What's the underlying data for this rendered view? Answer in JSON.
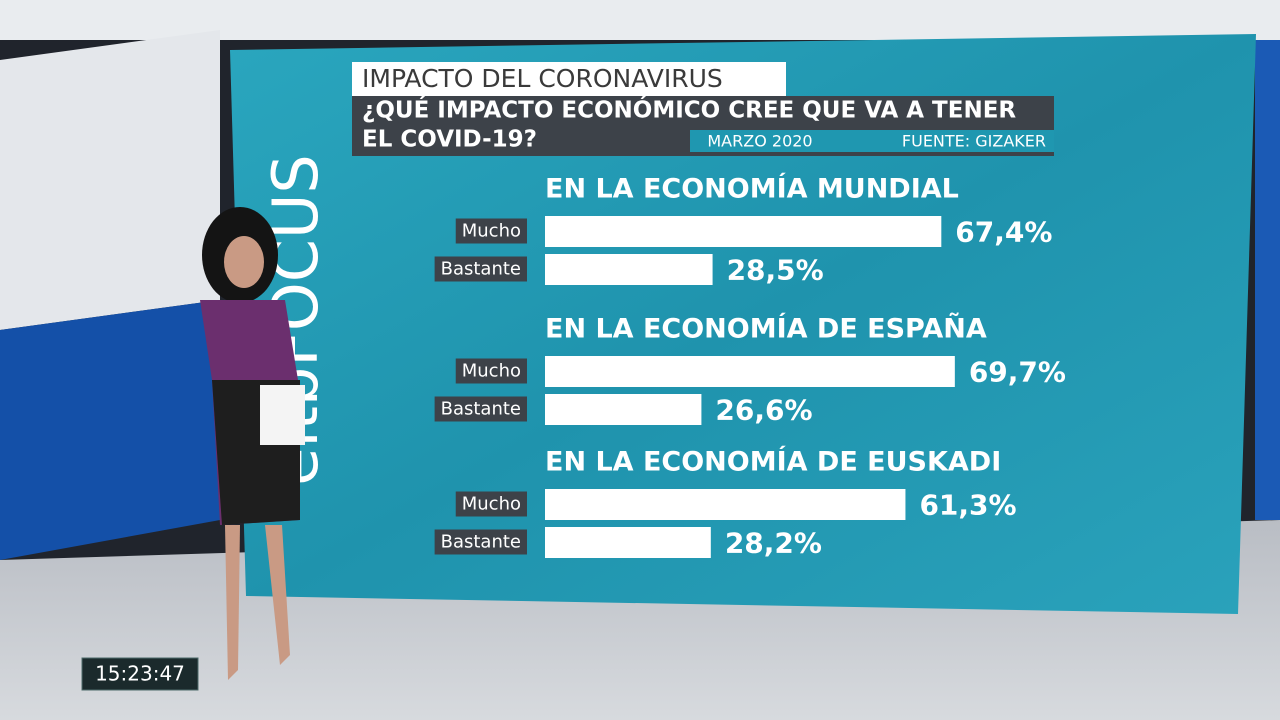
{
  "header": {
    "title": "IMPACTO DEL CORONAVIRUS",
    "question": [
      "¿QUÉ IMPACTO ECONÓMICO CREE QUE VA A TENER",
      "EL COVID-19?"
    ],
    "date": "MARZO 2020",
    "source": "FUENTE: GIZAKER"
  },
  "logo": "eitbFOCUS",
  "clock": "15:23:47",
  "chart_data": [
    {
      "type": "bar",
      "orientation": "horizontal",
      "title": "EN LA ECONOMÍA MUNDIAL",
      "categories": [
        "Mucho",
        "Bastante"
      ],
      "values": [
        67.4,
        28.5
      ],
      "value_labels": [
        "67,4%",
        "28,5%"
      ],
      "color": "#ffffff"
    },
    {
      "type": "bar",
      "orientation": "horizontal",
      "title": "EN LA ECONOMÍA DE ESPAÑA",
      "categories": [
        "Mucho",
        "Bastante"
      ],
      "values": [
        69.7,
        26.6
      ],
      "value_labels": [
        "69,7%",
        "26,6%"
      ],
      "color": "#ffffff"
    },
    {
      "type": "bar",
      "orientation": "horizontal",
      "title": "EN LA ECONOMÍA DE EUSKADI",
      "categories": [
        "Mucho",
        "Bastante"
      ],
      "values": [
        61.3,
        28.2
      ],
      "value_labels": [
        "61,3%",
        "28,2%"
      ],
      "color": "#ffffff"
    }
  ]
}
